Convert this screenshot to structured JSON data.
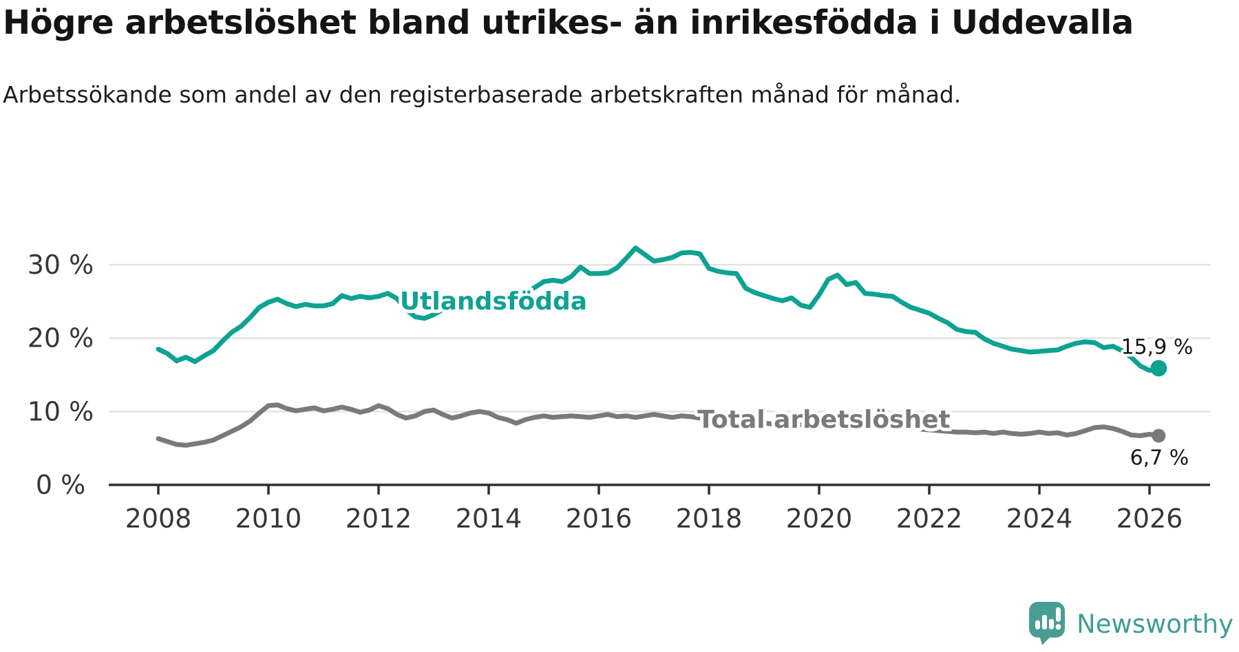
{
  "footer": {
    "brand": "Newsworthy",
    "logo_icon": "bar-chart-speech-bubble-icon",
    "brand_color": "#3f9d93"
  },
  "chart_data": {
    "type": "line",
    "title": "Högre arbetslöshet bland utrikes- än inrikesfödda i Uddevalla",
    "subtitle": "Arbetssökande som andel av den registerbaserade arbetskraften månad för månad.",
    "unit": "%",
    "grid": true,
    "legend_position": "inline-labels",
    "x_axis": {
      "ticks": [
        2008,
        2010,
        2012,
        2014,
        2016,
        2018,
        2020,
        2022,
        2024,
        2026
      ],
      "range_years": [
        2007.1,
        2027.1
      ]
    },
    "y_axis": {
      "ticks": [
        0,
        10,
        20,
        30
      ],
      "tick_labels": [
        "0 %",
        "10 %",
        "20 %",
        "30 %"
      ],
      "range": [
        0,
        35
      ]
    },
    "series": [
      {
        "name": "Utlandsfödda",
        "key": "utlandsfodda",
        "color": "#0ea293",
        "end_value": 15.9,
        "end_label": "15,9 %",
        "x_start": 2008.0,
        "x_step_years": 0.166667,
        "values": [
          18.5,
          17.9,
          16.9,
          17.4,
          16.8,
          17.6,
          18.3,
          19.6,
          20.8,
          21.6,
          22.8,
          24.2,
          24.9,
          25.3,
          24.7,
          24.3,
          24.6,
          24.4,
          24.4,
          24.7,
          25.8,
          25.4,
          25.7,
          25.5,
          25.7,
          26.1,
          25.4,
          23.9,
          22.9,
          22.7,
          23.2,
          23.9,
          24.3,
          24.7,
          25.0,
          24.8,
          25.1,
          25.4,
          25.2,
          25.6,
          26.1,
          26.9,
          27.7,
          27.9,
          27.7,
          28.4,
          29.7,
          28.8,
          28.8,
          28.9,
          29.6,
          30.9,
          32.3,
          31.4,
          30.5,
          30.7,
          31.0,
          31.6,
          31.7,
          31.5,
          29.5,
          29.1,
          28.9,
          28.8,
          26.8,
          26.2,
          25.8,
          25.4,
          25.1,
          25.5,
          24.5,
          24.2,
          25.9,
          28.0,
          28.6,
          27.3,
          27.6,
          26.1,
          26.0,
          25.8,
          25.7,
          24.9,
          24.2,
          23.8,
          23.4,
          22.7,
          22.1,
          21.2,
          20.9,
          20.8,
          19.9,
          19.3,
          18.9,
          18.5,
          18.3,
          18.1,
          18.2,
          18.3,
          18.4,
          18.9,
          19.3,
          19.5,
          19.4,
          18.7,
          18.9,
          18.3,
          17.4,
          16.2,
          15.6,
          15.9
        ]
      },
      {
        "name": "Total arbetslöshet",
        "key": "total-arbetsloshet",
        "color": "#7a7a7a",
        "end_value": 6.7,
        "end_label": "6,7 %",
        "x_start": 2008.0,
        "x_step_years": 0.166667,
        "values": [
          6.3,
          5.9,
          5.5,
          5.4,
          5.6,
          5.8,
          6.1,
          6.7,
          7.3,
          7.9,
          8.7,
          9.8,
          10.8,
          10.9,
          10.4,
          10.1,
          10.3,
          10.5,
          10.1,
          10.3,
          10.6,
          10.3,
          9.9,
          10.2,
          10.8,
          10.4,
          9.6,
          9.1,
          9.4,
          10.0,
          10.2,
          9.6,
          9.1,
          9.4,
          9.8,
          10.0,
          9.8,
          9.2,
          8.9,
          8.4,
          8.9,
          9.2,
          9.4,
          9.2,
          9.3,
          9.4,
          9.3,
          9.2,
          9.4,
          9.6,
          9.3,
          9.4,
          9.2,
          9.4,
          9.6,
          9.4,
          9.2,
          9.4,
          9.3,
          9.1,
          9.0,
          8.8,
          8.7,
          8.8,
          8.6,
          8.5,
          8.4,
          8.3,
          8.2,
          8.3,
          8.2,
          8.1,
          8.3,
          8.9,
          9.3,
          9.1,
          8.9,
          8.7,
          8.6,
          8.4,
          8.2,
          8.0,
          7.8,
          7.6,
          7.5,
          7.4,
          7.3,
          7.2,
          7.2,
          7.1,
          7.2,
          7.0,
          7.2,
          7.0,
          6.9,
          7.0,
          7.2,
          7.0,
          7.1,
          6.8,
          7.0,
          7.4,
          7.8,
          7.9,
          7.7,
          7.3,
          6.8,
          6.7,
          6.9,
          6.7
        ]
      }
    ]
  }
}
